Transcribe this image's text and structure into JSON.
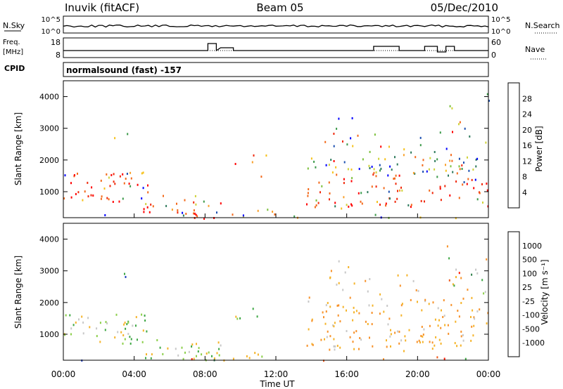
{
  "header": {
    "station": "Inuvik (fitACF)",
    "beam": "Beam 05",
    "date": "05/Dec/2010"
  },
  "strip_panels": {
    "nsky": {
      "label": "N.Sky",
      "ticks": [
        "10^5",
        "10^0"
      ],
      "right_ticks": [
        "10^5",
        "10^0"
      ],
      "right_label": "N.Search"
    },
    "freq": {
      "label_top": "Freq.",
      "label_bottom": "[MHz]",
      "ticks": [
        "18",
        "8"
      ],
      "right_ticks": [
        "60",
        "0"
      ],
      "right_label": "Nave"
    },
    "cpid": {
      "label": "CPID",
      "text": "normalsound (fast) -157"
    }
  },
  "chart_data": [
    {
      "type": "heatmap",
      "name": "power",
      "ylabel": "Slant Range [km]",
      "yticks": [
        "4000",
        "3000",
        "2000",
        "1000"
      ],
      "ylim": [
        180,
        4500
      ],
      "colorbar": {
        "label": "Power [dB]",
        "ticks": [
          "28",
          "24",
          "20",
          "16",
          "12",
          "8",
          "4"
        ],
        "colors": [
          "#0000ff",
          "#1c4fb0",
          "#2e7a5c",
          "#3c9a4a",
          "#7cc03c",
          "#cfd23a",
          "#f6c21c",
          "#f9a02a",
          "#f36a1c",
          "#f02a0c",
          "#ff0000"
        ]
      }
    },
    {
      "type": "heatmap",
      "name": "velocity",
      "ylabel": "Slant Range [km]",
      "yticks": [
        "4000",
        "3000",
        "2000",
        "1000"
      ],
      "ylim": [
        180,
        4500
      ],
      "colorbar": {
        "label": "Velocity [m s⁻¹]",
        "ticks": [
          "1000",
          "500",
          "100",
          "25",
          "-25",
          "-100",
          "-500",
          "-1000"
        ],
        "colors": [
          "#1f3fbf",
          "#2f7f4a",
          "#3fa845",
          "#8ccf4a",
          "#c8c8c8",
          "#f5b42a",
          "#f7922a",
          "#f05a1a",
          "#ff1a00"
        ]
      }
    }
  ],
  "xaxis": {
    "label": "Time UT",
    "ticks": [
      "00:00",
      "04:00",
      "08:00",
      "12:00",
      "16:00",
      "20:00",
      "00:00"
    ]
  }
}
